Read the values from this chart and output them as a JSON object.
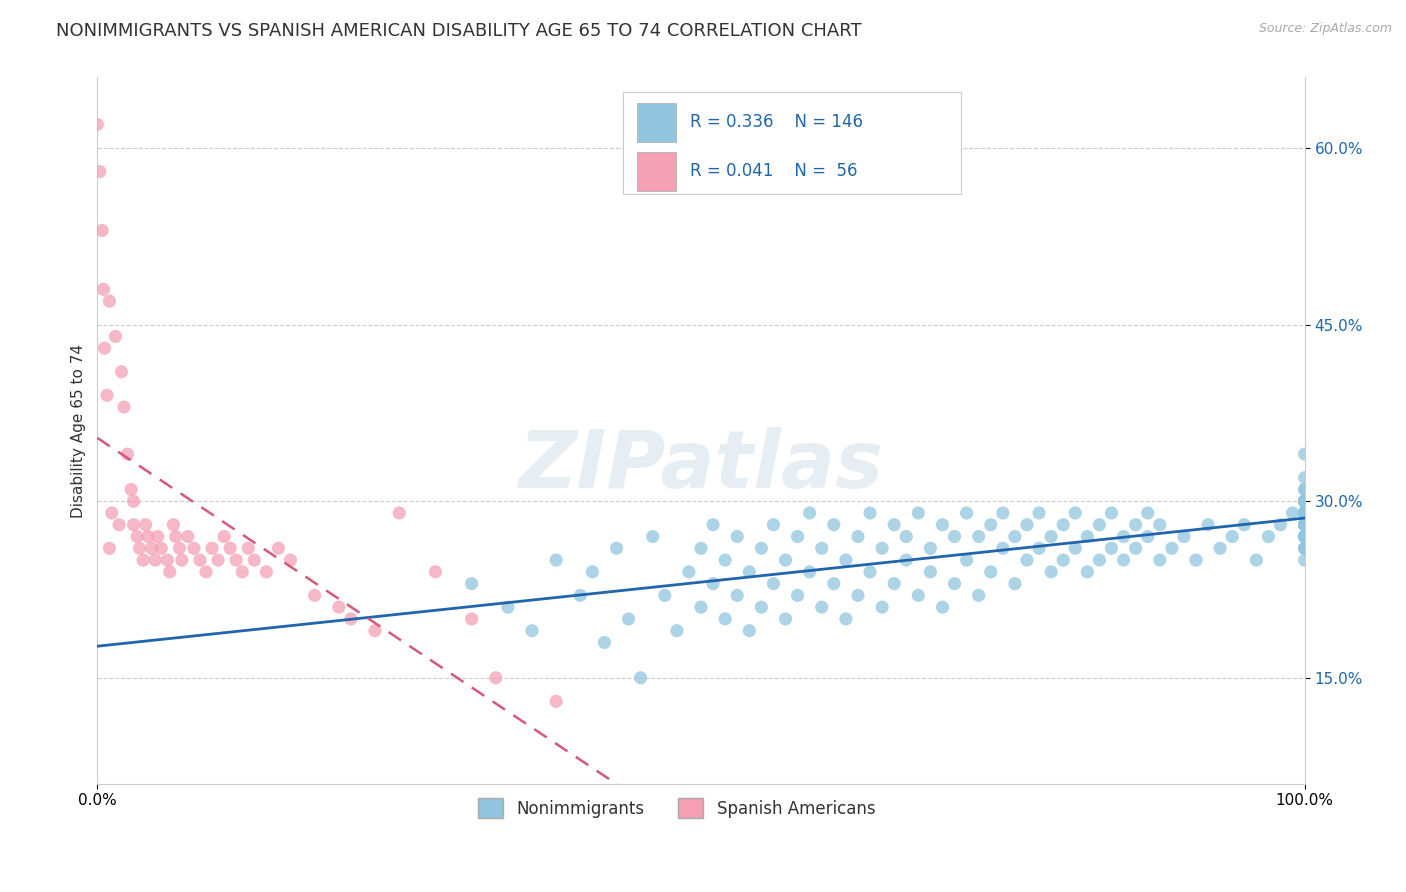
{
  "title": "NONIMMIGRANTS VS SPANISH AMERICAN DISABILITY AGE 65 TO 74 CORRELATION CHART",
  "source": "Source: ZipAtlas.com",
  "ylabel": "Disability Age 65 to 74",
  "xlim": [
    0,
    1.0
  ],
  "ylim": [
    0.06,
    0.66
  ],
  "ytick_labels": [
    "15.0%",
    "30.0%",
    "45.0%",
    "60.0%"
  ],
  "ytick_vals": [
    0.15,
    0.3,
    0.45,
    0.6
  ],
  "legend_labels": [
    "Nonimmigrants",
    "Spanish Americans"
  ],
  "blue_R": "0.336",
  "blue_N": "146",
  "pink_R": "0.041",
  "pink_N": "56",
  "blue_color": "#92c5de",
  "pink_color": "#f4a0b5",
  "blue_line_color": "#2166ac",
  "pink_line_color": "#d6587a",
  "background_color": "#ffffff",
  "grid_color": "#cccccc",
  "watermark": "ZIPatlas",
  "title_fontsize": 13,
  "axis_label_fontsize": 11,
  "tick_fontsize": 11,
  "blue_scatter_x": [
    0.31,
    0.34,
    0.36,
    0.38,
    0.4,
    0.41,
    0.42,
    0.43,
    0.44,
    0.45,
    0.46,
    0.47,
    0.48,
    0.49,
    0.5,
    0.5,
    0.51,
    0.51,
    0.52,
    0.52,
    0.53,
    0.53,
    0.54,
    0.54,
    0.55,
    0.55,
    0.56,
    0.56,
    0.57,
    0.57,
    0.58,
    0.58,
    0.59,
    0.59,
    0.6,
    0.6,
    0.61,
    0.61,
    0.62,
    0.62,
    0.63,
    0.63,
    0.64,
    0.64,
    0.65,
    0.65,
    0.66,
    0.66,
    0.67,
    0.67,
    0.68,
    0.68,
    0.69,
    0.69,
    0.7,
    0.7,
    0.71,
    0.71,
    0.72,
    0.72,
    0.73,
    0.73,
    0.74,
    0.74,
    0.75,
    0.75,
    0.76,
    0.76,
    0.77,
    0.77,
    0.78,
    0.78,
    0.79,
    0.79,
    0.8,
    0.8,
    0.81,
    0.81,
    0.82,
    0.82,
    0.83,
    0.83,
    0.84,
    0.84,
    0.85,
    0.85,
    0.86,
    0.86,
    0.87,
    0.87,
    0.88,
    0.88,
    0.89,
    0.9,
    0.91,
    0.92,
    0.93,
    0.94,
    0.95,
    0.96,
    0.97,
    0.98,
    0.99,
    1.0,
    1.0,
    1.0,
    1.0,
    1.0,
    1.0,
    1.0,
    1.0,
    1.0,
    1.0,
    1.0,
    1.0,
    1.0,
    1.0,
    1.0,
    1.0,
    1.0,
    1.0,
    1.0,
    1.0,
    1.0,
    1.0,
    1.0,
    1.0,
    1.0,
    1.0,
    1.0,
    1.0,
    1.0,
    1.0,
    1.0,
    1.0,
    1.0,
    1.0,
    1.0,
    1.0,
    1.0,
    1.0,
    1.0,
    1.0,
    1.0,
    1.0,
    1.0
  ],
  "blue_scatter_y": [
    0.23,
    0.21,
    0.19,
    0.25,
    0.22,
    0.24,
    0.18,
    0.26,
    0.2,
    0.15,
    0.27,
    0.22,
    0.19,
    0.24,
    0.21,
    0.26,
    0.23,
    0.28,
    0.2,
    0.25,
    0.22,
    0.27,
    0.24,
    0.19,
    0.21,
    0.26,
    0.23,
    0.28,
    0.2,
    0.25,
    0.22,
    0.27,
    0.24,
    0.29,
    0.21,
    0.26,
    0.23,
    0.28,
    0.2,
    0.25,
    0.22,
    0.27,
    0.24,
    0.29,
    0.21,
    0.26,
    0.23,
    0.28,
    0.25,
    0.27,
    0.22,
    0.29,
    0.24,
    0.26,
    0.21,
    0.28,
    0.23,
    0.27,
    0.25,
    0.29,
    0.22,
    0.27,
    0.24,
    0.28,
    0.26,
    0.29,
    0.23,
    0.27,
    0.25,
    0.28,
    0.26,
    0.29,
    0.24,
    0.27,
    0.25,
    0.28,
    0.26,
    0.29,
    0.24,
    0.27,
    0.25,
    0.28,
    0.26,
    0.29,
    0.25,
    0.27,
    0.26,
    0.28,
    0.27,
    0.29,
    0.25,
    0.28,
    0.26,
    0.27,
    0.25,
    0.28,
    0.26,
    0.27,
    0.28,
    0.25,
    0.27,
    0.28,
    0.29,
    0.26,
    0.28,
    0.29,
    0.27,
    0.3,
    0.28,
    0.25,
    0.27,
    0.29,
    0.28,
    0.26,
    0.29,
    0.27,
    0.3,
    0.28,
    0.29,
    0.27,
    0.3,
    0.28,
    0.26,
    0.29,
    0.3,
    0.28,
    0.31,
    0.27,
    0.29,
    0.3,
    0.28,
    0.29,
    0.27,
    0.3,
    0.29,
    0.28,
    0.3,
    0.32,
    0.29,
    0.3,
    0.28,
    0.3,
    0.34,
    0.29,
    0.3,
    0.31
  ],
  "pink_scatter_x": [
    0.0,
    0.002,
    0.004,
    0.005,
    0.006,
    0.008,
    0.01,
    0.01,
    0.012,
    0.015,
    0.018,
    0.02,
    0.022,
    0.025,
    0.028,
    0.03,
    0.03,
    0.033,
    0.035,
    0.038,
    0.04,
    0.042,
    0.045,
    0.048,
    0.05,
    0.053,
    0.058,
    0.06,
    0.063,
    0.065,
    0.068,
    0.07,
    0.075,
    0.08,
    0.085,
    0.09,
    0.095,
    0.1,
    0.105,
    0.11,
    0.115,
    0.12,
    0.125,
    0.13,
    0.14,
    0.15,
    0.16,
    0.18,
    0.2,
    0.21,
    0.23,
    0.25,
    0.28,
    0.31,
    0.33,
    0.38
  ],
  "pink_scatter_y": [
    0.62,
    0.58,
    0.53,
    0.48,
    0.43,
    0.39,
    0.47,
    0.26,
    0.29,
    0.44,
    0.28,
    0.41,
    0.38,
    0.34,
    0.31,
    0.3,
    0.28,
    0.27,
    0.26,
    0.25,
    0.28,
    0.27,
    0.26,
    0.25,
    0.27,
    0.26,
    0.25,
    0.24,
    0.28,
    0.27,
    0.26,
    0.25,
    0.27,
    0.26,
    0.25,
    0.24,
    0.26,
    0.25,
    0.27,
    0.26,
    0.25,
    0.24,
    0.26,
    0.25,
    0.24,
    0.26,
    0.25,
    0.22,
    0.21,
    0.2,
    0.19,
    0.29,
    0.24,
    0.2,
    0.15,
    0.13
  ]
}
